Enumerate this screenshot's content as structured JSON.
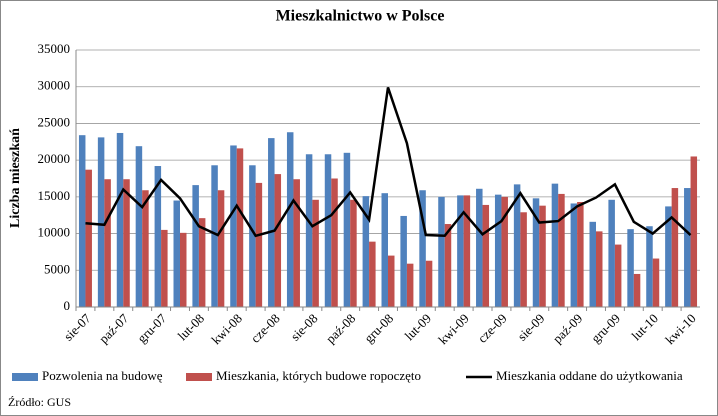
{
  "chart_data": {
    "type": "bar-line",
    "title": "Mieszkalnictwo w Polsce",
    "y_label": "Liczba mieszkań",
    "source": "Źródło: GUS",
    "categories": [
      "sie-07",
      null,
      "paź-07",
      null,
      "gru-07",
      null,
      "lut-08",
      null,
      "kwi-08",
      null,
      "cze-08",
      null,
      "sie-08",
      null,
      "paź-08",
      null,
      "gru-08",
      null,
      "lut-09",
      null,
      "kwi-09",
      null,
      "cze-09",
      null,
      "sie-09",
      null,
      "paź-09",
      null,
      "gru-09",
      null,
      "lut-10",
      null,
      "kwi-10"
    ],
    "series": [
      {
        "name": "Pozwolenia na budowę",
        "color": "#4f81bd",
        "kind": "bar",
        "values": [
          23400,
          23100,
          23700,
          21900,
          19200,
          14500,
          16600,
          19300,
          22000,
          19300,
          23000,
          23800,
          20800,
          20800,
          21000,
          15100,
          15500,
          12400,
          15900,
          15000,
          15200,
          16100,
          15300,
          16700,
          14800,
          16800,
          14100,
          11600,
          14600,
          10600,
          11000,
          13700,
          16200
        ]
      },
      {
        "name": "Mieszkania, których budowe ropoczęto",
        "color": "#c0504d",
        "kind": "bar",
        "values": [
          18700,
          17400,
          17400,
          15900,
          10500,
          10100,
          12100,
          15900,
          21600,
          16900,
          18100,
          17400,
          14600,
          17500,
          14600,
          8900,
          7000,
          5900,
          6300,
          11300,
          15200,
          13900,
          15000,
          12900,
          13800,
          15400,
          14300,
          10300,
          8500,
          4500,
          6600,
          16200,
          20500
        ]
      },
      {
        "name": "Mieszkania oddane do użytkowania",
        "color": "#000000",
        "kind": "line",
        "values": [
          11400,
          11200,
          16000,
          13600,
          17300,
          14800,
          11000,
          9800,
          13800,
          9700,
          10400,
          14500,
          11000,
          12500,
          15600,
          11900,
          29900,
          22300,
          9800,
          9700,
          12900,
          9900,
          11700,
          15500,
          11500,
          11700,
          13700,
          14900,
          16700,
          11600,
          10000,
          12200,
          9800
        ]
      }
    ],
    "ylim": [
      0,
      35000
    ],
    "yticks": [
      0,
      5000,
      10000,
      15000,
      20000,
      25000,
      30000,
      35000
    ],
    "grid": true
  }
}
